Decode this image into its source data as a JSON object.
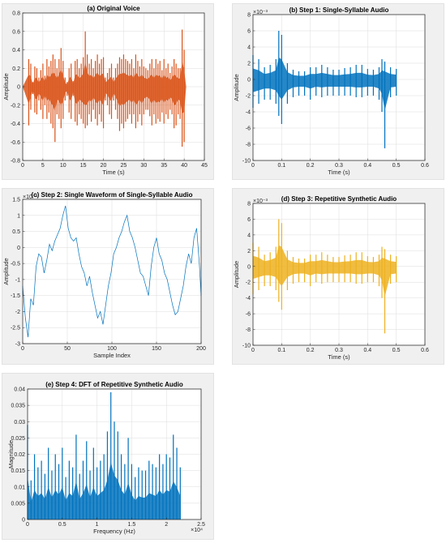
{
  "chart_data": [
    {
      "id": "a",
      "type": "line",
      "title": "(a) Original Voice",
      "xlabel": "Time (s)",
      "ylabel": "Amplitude",
      "xlim": [
        0,
        45
      ],
      "ylim": [
        -0.8,
        0.8
      ],
      "xticks": [
        0,
        5,
        10,
        15,
        20,
        25,
        30,
        35,
        40,
        45
      ],
      "yticks": [
        -0.8,
        -0.6,
        -0.4,
        -0.2,
        0,
        0.2,
        0.4,
        0.6,
        0.8
      ],
      "xtick_labels": [
        "0",
        "5",
        "10",
        "15",
        "20",
        "25",
        "30",
        "35",
        "40",
        "45"
      ],
      "ytick_labels": [
        "-0.8",
        "-0.6",
        "-0.4",
        "-0.2",
        "0",
        "0.2",
        "0.4",
        "0.6",
        "0.8"
      ],
      "exponent_label": "",
      "x_exponent_label": "",
      "grid": true,
      "color": "#d95319",
      "series": [
        {
          "x": [
            0.0,
            1.5,
            2.0,
            2.5,
            3.0,
            3.5,
            4.0,
            4.5,
            5.0,
            5.5,
            6.0,
            6.5,
            7.0,
            7.5,
            8.0,
            8.5,
            9.0,
            9.5,
            10.0,
            10.5,
            11.0,
            11.5,
            12.0,
            12.5,
            13.0,
            13.5,
            14.0,
            14.5,
            15.0,
            15.5,
            16.0,
            16.5,
            17.0,
            17.5,
            18.0,
            18.5,
            19.0,
            19.5,
            20.0,
            20.5,
            21.0,
            21.5,
            22.0,
            22.5,
            23.0,
            23.5,
            24.0,
            24.5,
            25.0,
            25.5,
            26.0,
            26.5,
            27.0,
            27.5,
            28.0,
            28.5,
            29.0,
            29.5,
            30.0,
            30.5,
            31.0,
            31.5,
            32.0,
            32.5,
            33.0,
            33.5,
            34.0,
            34.5,
            35.0,
            35.5,
            36.0,
            36.5,
            37.0,
            37.5,
            38.0,
            38.5,
            39.0,
            39.5,
            40.0,
            40.5
          ],
          "max": [
            0.0,
            0.3,
            0.25,
            0.05,
            0.22,
            0.2,
            0.1,
            0.18,
            0.25,
            0.12,
            0.3,
            0.22,
            0.28,
            0.35,
            0.3,
            0.2,
            0.3,
            0.42,
            0.28,
            0.1,
            0.05,
            0.2,
            0.25,
            0.06,
            0.28,
            0.3,
            0.2,
            0.25,
            0.32,
            0.6,
            0.35,
            0.25,
            0.3,
            0.2,
            0.28,
            0.35,
            0.25,
            0.3,
            0.32,
            0.1,
            0.15,
            0.2,
            0.25,
            0.1,
            0.2,
            0.25,
            0.32,
            0.3,
            0.35,
            0.3,
            0.28,
            0.25,
            0.3,
            0.2,
            0.35,
            0.28,
            0.22,
            0.3,
            0.22,
            0.2,
            0.18,
            0.25,
            0.3,
            0.2,
            0.3,
            0.25,
            0.28,
            0.18,
            0.3,
            0.2,
            0.25,
            0.15,
            0.22,
            0.3,
            0.25,
            0.2,
            0.2,
            0.62,
            0.4,
            0.0
          ],
          "min": [
            0.0,
            -0.42,
            -0.25,
            -0.08,
            -0.28,
            -0.3,
            -0.15,
            -0.25,
            -0.35,
            -0.2,
            -0.35,
            -0.28,
            -0.4,
            -0.45,
            -0.6,
            -0.3,
            -0.35,
            -0.45,
            -0.35,
            -0.15,
            -0.1,
            -0.28,
            -0.35,
            -0.1,
            -0.38,
            -0.42,
            -0.3,
            -0.35,
            -0.4,
            -0.45,
            -0.42,
            -0.3,
            -0.38,
            -0.25,
            -0.35,
            -0.42,
            -0.3,
            -0.38,
            -0.45,
            -0.15,
            -0.2,
            -0.3,
            -0.35,
            -0.15,
            -0.25,
            -0.35,
            -0.48,
            -0.4,
            -0.45,
            -0.38,
            -0.35,
            -0.3,
            -0.4,
            -0.3,
            -0.45,
            -0.38,
            -0.3,
            -0.42,
            -0.3,
            -0.25,
            -0.25,
            -0.32,
            -0.42,
            -0.3,
            -0.4,
            -0.35,
            -0.38,
            -0.28,
            -0.4,
            -0.3,
            -0.35,
            -0.25,
            -0.3,
            -0.45,
            -0.42,
            -0.3,
            -0.35,
            -0.65,
            -0.6,
            0.0
          ]
        }
      ]
    },
    {
      "id": "b",
      "type": "line",
      "title": "(b) Step 1: Single-Syllable Audio",
      "xlabel": "Time (s)",
      "ylabel": "Amplitude",
      "xlim": [
        0,
        0.6
      ],
      "ylim": [
        -10,
        8
      ],
      "xticks": [
        0,
        0.1,
        0.2,
        0.3,
        0.4,
        0.5,
        0.6
      ],
      "yticks": [
        -10,
        -8,
        -6,
        -4,
        -2,
        0,
        2,
        4,
        6,
        8
      ],
      "xtick_labels": [
        "0",
        "0.1",
        "0.2",
        "0.3",
        "0.4",
        "0.5",
        "0.6"
      ],
      "ytick_labels": [
        "-10",
        "-8",
        "-6",
        "-4",
        "-2",
        "0",
        "2",
        "4",
        "6",
        "8"
      ],
      "exponent_label": "×10⁻³",
      "x_exponent_label": "",
      "grid": true,
      "color": "#0072bd",
      "series": [
        {
          "x": [
            0.0,
            0.02,
            0.04,
            0.06,
            0.08,
            0.09,
            0.1,
            0.12,
            0.14,
            0.16,
            0.18,
            0.2,
            0.22,
            0.24,
            0.26,
            0.28,
            0.3,
            0.32,
            0.34,
            0.36,
            0.38,
            0.4,
            0.42,
            0.44,
            0.45,
            0.46,
            0.48,
            0.5
          ],
          "max": [
            3.0,
            2.5,
            1.5,
            1.8,
            2.5,
            6.0,
            5.5,
            2.0,
            1.2,
            1.0,
            1.0,
            1.5,
            1.5,
            1.8,
            1.5,
            1.2,
            1.2,
            1.4,
            1.5,
            1.8,
            1.8,
            1.3,
            1.2,
            1.5,
            2.5,
            2.2,
            1.5,
            1.3
          ],
          "min": [
            -3.5,
            -3.0,
            -2.5,
            -2.5,
            -3.0,
            -4.5,
            -5.5,
            -3.0,
            -2.2,
            -2.0,
            -2.0,
            -2.5,
            -2.0,
            -2.2,
            -2.0,
            -2.0,
            -2.0,
            -2.0,
            -2.0,
            -2.2,
            -2.2,
            -2.0,
            -2.0,
            -2.5,
            -4.0,
            -8.5,
            -2.2,
            -2.0
          ]
        }
      ]
    },
    {
      "id": "c",
      "type": "line",
      "title": "(c) Step 2: Single Waveform of Single-Syllable Audio",
      "xlabel": "Sample Index",
      "ylabel": "Amplitude",
      "xlim": [
        0,
        200
      ],
      "ylim": [
        -3,
        1.5
      ],
      "xticks": [
        0,
        50,
        100,
        150,
        200
      ],
      "yticks": [
        -3,
        -2.5,
        -2,
        -1.5,
        -1,
        -0.5,
        0,
        0.5,
        1,
        1.5
      ],
      "xtick_labels": [
        "0",
        "50",
        "100",
        "150",
        "200"
      ],
      "ytick_labels": [
        "-3",
        "-2.5",
        "-2",
        "-1.5",
        "-1",
        "-0.5",
        "0",
        "0.5",
        "1",
        "1.5"
      ],
      "exponent_label": "×10⁻³",
      "x_exponent_label": "",
      "grid": true,
      "color": "#0072bd",
      "series": [
        {
          "x": [
            0,
            3,
            6,
            9,
            12,
            15,
            18,
            21,
            24,
            27,
            30,
            33,
            36,
            39,
            42,
            45,
            48,
            51,
            54,
            57,
            60,
            63,
            66,
            69,
            72,
            75,
            78,
            81,
            84,
            87,
            90,
            93,
            96,
            99,
            102,
            105,
            108,
            111,
            114,
            117,
            120,
            123,
            126,
            129,
            132,
            135,
            138,
            141,
            144,
            147,
            150,
            153,
            156,
            159,
            162,
            165,
            168,
            171,
            174,
            177,
            180,
            183,
            186,
            189,
            192,
            195,
            198,
            200
          ],
          "y": [
            -1.2,
            -2.2,
            -2.8,
            -1.6,
            -1.8,
            -0.6,
            -0.2,
            -0.3,
            -0.8,
            -0.4,
            0.1,
            -0.1,
            0.2,
            0.4,
            0.6,
            1.0,
            1.3,
            0.6,
            0.3,
            0.2,
            0.3,
            -0.2,
            -0.6,
            -0.8,
            -1.2,
            -0.9,
            -1.4,
            -1.8,
            -2.2,
            -2.0,
            -2.4,
            -1.8,
            -1.2,
            -0.8,
            -0.2,
            0.0,
            0.3,
            0.5,
            0.8,
            1.0,
            0.5,
            0.3,
            0.0,
            -0.4,
            -0.8,
            -0.9,
            -1.2,
            -1.5,
            -0.6,
            0.0,
            0.3,
            -0.2,
            -0.4,
            -0.8,
            -1.0,
            -1.4,
            -1.8,
            -2.1,
            -2.0,
            -1.6,
            -1.2,
            -0.6,
            -0.2,
            -0.5,
            0.3,
            0.6,
            -0.5,
            -1.5
          ]
        }
      ]
    },
    {
      "id": "d",
      "type": "line",
      "title": "(d) Step 3: Repetitive Synthetic Audio",
      "xlabel": "Time (s)",
      "ylabel": "Amplitude",
      "xlim": [
        0,
        0.6
      ],
      "ylim": [
        -10,
        8
      ],
      "xticks": [
        0,
        0.1,
        0.2,
        0.3,
        0.4,
        0.5,
        0.6
      ],
      "yticks": [
        -10,
        -8,
        -6,
        -4,
        -2,
        0,
        2,
        4,
        6,
        8
      ],
      "xtick_labels": [
        "0",
        "0.1",
        "0.2",
        "0.3",
        "0.4",
        "0.5",
        "0.6"
      ],
      "ytick_labels": [
        "-10",
        "-8",
        "-6",
        "-4",
        "-2",
        "0",
        "2",
        "4",
        "6",
        "8"
      ],
      "exponent_label": "×10⁻³",
      "x_exponent_label": "",
      "grid": true,
      "color": "#edb120",
      "series": [
        {
          "x": [
            0.0,
            0.02,
            0.04,
            0.06,
            0.08,
            0.09,
            0.1,
            0.12,
            0.14,
            0.16,
            0.18,
            0.2,
            0.22,
            0.24,
            0.26,
            0.28,
            0.3,
            0.32,
            0.34,
            0.36,
            0.38,
            0.4,
            0.42,
            0.44,
            0.45,
            0.46,
            0.48,
            0.5
          ],
          "max": [
            3.0,
            2.5,
            1.5,
            1.8,
            2.5,
            6.0,
            5.5,
            2.0,
            1.2,
            1.0,
            1.0,
            1.5,
            1.5,
            1.8,
            1.5,
            1.2,
            1.2,
            1.4,
            1.5,
            1.8,
            1.8,
            1.3,
            1.2,
            1.5,
            2.5,
            2.2,
            1.5,
            1.3
          ],
          "min": [
            -3.5,
            -3.0,
            -2.5,
            -2.5,
            -3.0,
            -4.5,
            -5.5,
            -3.0,
            -2.2,
            -2.0,
            -2.0,
            -2.5,
            -2.0,
            -2.2,
            -2.0,
            -2.0,
            -2.0,
            -2.0,
            -2.0,
            -2.2,
            -2.2,
            -2.0,
            -2.0,
            -2.5,
            -4.0,
            -8.5,
            -2.2,
            -2.0
          ]
        }
      ]
    },
    {
      "id": "e",
      "type": "line",
      "title": "(e) Step 4: DFT of Repetitive Synthetic Audio",
      "xlabel": "Frequency (Hz)",
      "ylabel": "Magnitude",
      "xlim": [
        0,
        2.5
      ],
      "ylim": [
        0,
        0.04
      ],
      "xticks": [
        0,
        0.5,
        1,
        1.5,
        2,
        2.5
      ],
      "yticks": [
        0,
        0.005,
        0.01,
        0.015,
        0.02,
        0.025,
        0.03,
        0.035,
        0.04
      ],
      "xtick_labels": [
        "0",
        "0.5",
        "1",
        "1.5",
        "2",
        "2.5"
      ],
      "ytick_labels": [
        "0",
        "0.005",
        "0.01",
        "0.015",
        "0.02",
        "0.025",
        "0.03",
        "0.035",
        "0.04"
      ],
      "exponent_label": "",
      "x_exponent_label": "×10⁴",
      "grid": true,
      "color": "#0072bd",
      "series": [
        {
          "x": [
            0.0,
            0.05,
            0.1,
            0.15,
            0.2,
            0.25,
            0.3,
            0.35,
            0.4,
            0.45,
            0.5,
            0.55,
            0.6,
            0.65,
            0.7,
            0.75,
            0.8,
            0.85,
            0.9,
            0.95,
            1.0,
            1.05,
            1.1,
            1.15,
            1.2,
            1.25,
            1.3,
            1.35,
            1.4,
            1.45,
            1.5,
            1.55,
            1.6,
            1.65,
            1.7,
            1.75,
            1.8,
            1.85,
            1.9,
            1.95,
            2.0,
            2.05,
            2.1,
            2.15,
            2.2
          ],
          "max": [
            0.029,
            0.012,
            0.02,
            0.016,
            0.018,
            0.014,
            0.022,
            0.015,
            0.02,
            0.017,
            0.022,
            0.013,
            0.018,
            0.016,
            0.026,
            0.014,
            0.018,
            0.024,
            0.015,
            0.022,
            0.016,
            0.018,
            0.02,
            0.027,
            0.039,
            0.03,
            0.027,
            0.02,
            0.017,
            0.025,
            0.017,
            0.013,
            0.016,
            0.015,
            0.015,
            0.018,
            0.017,
            0.016,
            0.02,
            0.017,
            0.02,
            0.019,
            0.026,
            0.022,
            0.016
          ],
          "min": [
            0,
            0,
            0,
            0,
            0,
            0,
            0,
            0,
            0,
            0,
            0,
            0,
            0,
            0,
            0,
            0,
            0,
            0,
            0,
            0,
            0,
            0,
            0,
            0,
            0,
            0,
            0,
            0,
            0,
            0,
            0,
            0,
            0,
            0,
            0,
            0,
            0,
            0,
            0,
            0,
            0,
            0,
            0,
            0,
            0
          ]
        }
      ]
    }
  ]
}
